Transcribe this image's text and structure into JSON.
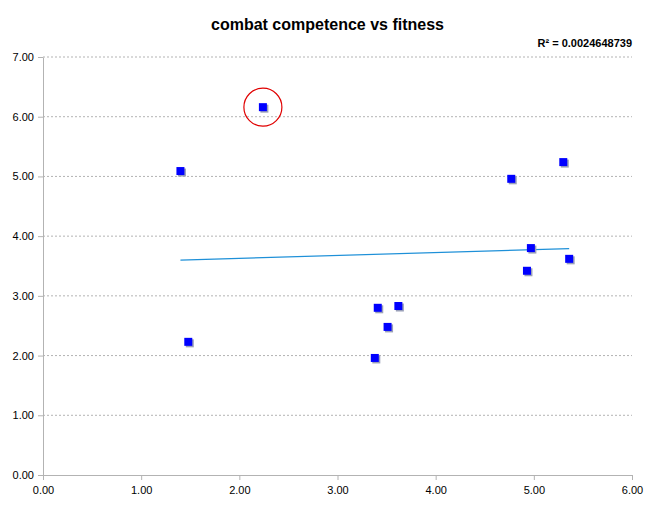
{
  "chart_data": {
    "type": "scatter",
    "title": "combat competence vs fitness",
    "annotation": "R² = 0.0024648739",
    "x": [
      1.4,
      2.24,
      1.48,
      3.41,
      3.62,
      3.51,
      3.38,
      4.77,
      5.3,
      4.97,
      4.93,
      5.36
    ],
    "values": [
      5.09,
      6.16,
      2.23,
      2.8,
      2.83,
      2.48,
      1.96,
      4.96,
      5.24,
      3.8,
      3.42,
      3.62
    ],
    "color": "#0000ff",
    "marker": "square",
    "trendline": {
      "type": "line",
      "x": [
        1.4,
        5.36
      ],
      "values": [
        3.6,
        3.79
      ],
      "color": "#1e90d8",
      "line_style": "solid"
    },
    "xlim": [
      0,
      6
    ],
    "xticks": [
      {
        "value": 0,
        "label": "0.00"
      },
      {
        "value": 1,
        "label": "1.00"
      },
      {
        "value": 2,
        "label": "2.00"
      },
      {
        "value": 3,
        "label": "3.00"
      },
      {
        "value": 4,
        "label": "4.00"
      },
      {
        "value": 5,
        "label": "5.00"
      },
      {
        "value": 6,
        "label": "6.00"
      }
    ],
    "ylim": [
      0,
      7
    ],
    "yticks": [
      {
        "value": 0,
        "label": "0.00"
      },
      {
        "value": 1,
        "label": "1.00"
      },
      {
        "value": 2,
        "label": "2.00"
      },
      {
        "value": 3,
        "label": "3.00"
      },
      {
        "value": 4,
        "label": "4.00"
      },
      {
        "value": 5,
        "label": "5.00"
      },
      {
        "value": 6,
        "label": "6.00"
      },
      {
        "value": 7,
        "label": "7.00"
      }
    ],
    "grid": true
  }
}
